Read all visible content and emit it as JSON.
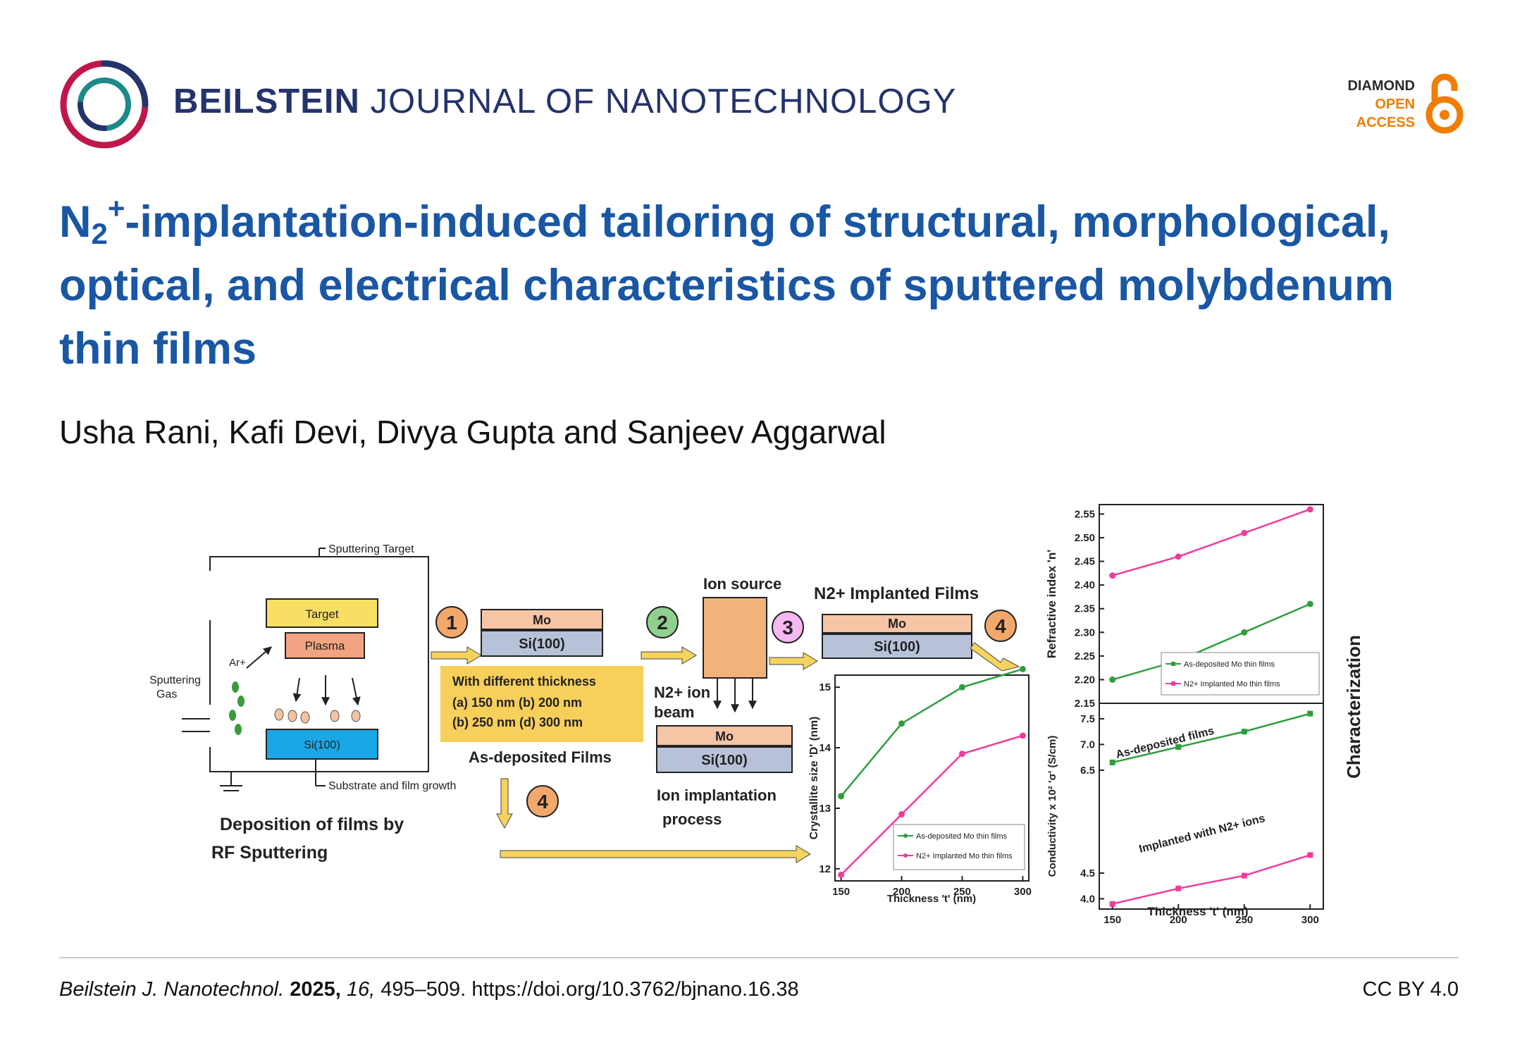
{
  "header": {
    "journal_bold": "BEILSTEIN",
    "journal_rest": "JOURNAL OF NANOTECHNOLOGY",
    "oa_line1": "DIAMOND",
    "oa_line2": "OPEN",
    "oa_line3": "ACCESS",
    "brand_color": "#25336b",
    "oa_color": "#f07d00"
  },
  "article": {
    "title_n": "N",
    "title_sub": "2",
    "title_sup": "+",
    "title_rest": "-implantation-induced tailoring of structural, morphological, optical, and electrical characteristics of sputtered molybdenum thin films",
    "authors": "Usha Rani, Kafi Devi, Divya Gupta and Sanjeev Aggarwal",
    "title_color": "#1957a5"
  },
  "graphic": {
    "sputter_target_label": "Sputtering Target",
    "target_label": "Target",
    "plasma_label": "Plasma",
    "ar_label": "Ar+",
    "sputtering_gas_label1": "Sputtering",
    "sputtering_gas_label2": "Gas",
    "substrate_label": "Si(100)",
    "film_growth_label": "Substrate and film growth",
    "deposition_label1": "Deposition of films by",
    "deposition_label2": "RF Sputtering",
    "step1": "1",
    "step2": "2",
    "step3": "3",
    "step4": "4",
    "mo_label": "Mo",
    "si_label": "Si(100)",
    "thickness_heading": "With different thickness",
    "thickness_line1": "(a)   150 nm (b) 200 nm",
    "thickness_line2": "(b)   250 nm (d) 300 nm",
    "as_deposited_films": "As-deposited Films",
    "ion_source": "Ion source",
    "ion_beam_line1": "N2+ ion",
    "ion_beam_line2": "beam",
    "implantation_line1": "Ion implantation",
    "implantation_line2": "process",
    "implanted_films": "N2+ Implanted Films",
    "characterization": "Characterization",
    "legend_as_dep": "As-deposited Mo thin films",
    "legend_impl": "N2+ Implanted Mo thin films",
    "annot_as_dep": "As-deposited films",
    "annot_impl": "Implanted with N2+ ions",
    "green": "#2e9e3c",
    "pink": "#f03c9a"
  },
  "chart_data": [
    {
      "type": "line",
      "ylabel": "Crystallite size 'D' (nm)",
      "xlabel": "Thickness 't' (nm)",
      "x": [
        150,
        200,
        250,
        300
      ],
      "xlim": [
        145,
        305
      ],
      "ylim": [
        11.8,
        15.2
      ],
      "yticks": [
        12,
        13,
        14,
        15
      ],
      "series": [
        {
          "name": "As-deposited Mo thin films",
          "values": [
            13.2,
            14.4,
            15.0,
            15.3
          ],
          "color": "#2e9e3c"
        },
        {
          "name": "N2+ Implanted Mo thin films",
          "values": [
            11.9,
            12.9,
            13.9,
            14.2
          ],
          "color": "#f03c9a"
        }
      ],
      "legend": "bottom-right"
    },
    {
      "type": "line",
      "ylabel": "Refractive index 'n'",
      "x": [
        150,
        200,
        250,
        300
      ],
      "xlim": [
        140,
        310
      ],
      "ylim": [
        2.15,
        2.57
      ],
      "yticks": [
        2.15,
        2.2,
        2.25,
        2.3,
        2.35,
        2.4,
        2.45,
        2.5,
        2.55
      ],
      "series": [
        {
          "name": "As-deposited Mo thin films",
          "values": [
            2.2,
            2.24,
            2.3,
            2.36
          ],
          "color": "#2e9e3c"
        },
        {
          "name": "N2+ Implanted Mo thin films",
          "values": [
            2.42,
            2.46,
            2.51,
            2.56
          ],
          "color": "#f03c9a"
        }
      ],
      "legend": "bottom-right"
    },
    {
      "type": "line",
      "ylabel": "Conductivity x 10² 'σ' (S/cm)",
      "xlabel": "Thickness 't' (nm)",
      "x": [
        150,
        200,
        250,
        300
      ],
      "xlim": [
        140,
        310
      ],
      "ylim": [
        3.8,
        7.8
      ],
      "yticks": [
        "4.0",
        "4.5",
        "6.5",
        "7.0",
        "7.5"
      ],
      "series": [
        {
          "name": "As-deposited films",
          "values": [
            6.65,
            6.95,
            7.25,
            7.6
          ],
          "color": "#2e9e3c"
        },
        {
          "name": "Implanted with N2+ ions",
          "values": [
            3.9,
            4.2,
            4.45,
            4.85
          ],
          "color": "#f03c9a"
        }
      ]
    }
  ],
  "footer": {
    "journal_abbr": "Beilstein J. Nanotechnol.",
    "year": "2025,",
    "volume": "16,",
    "pages": "495–509.",
    "doi": "https://doi.org/10.3762/bjnano.16.38",
    "license": "CC BY 4.0"
  }
}
